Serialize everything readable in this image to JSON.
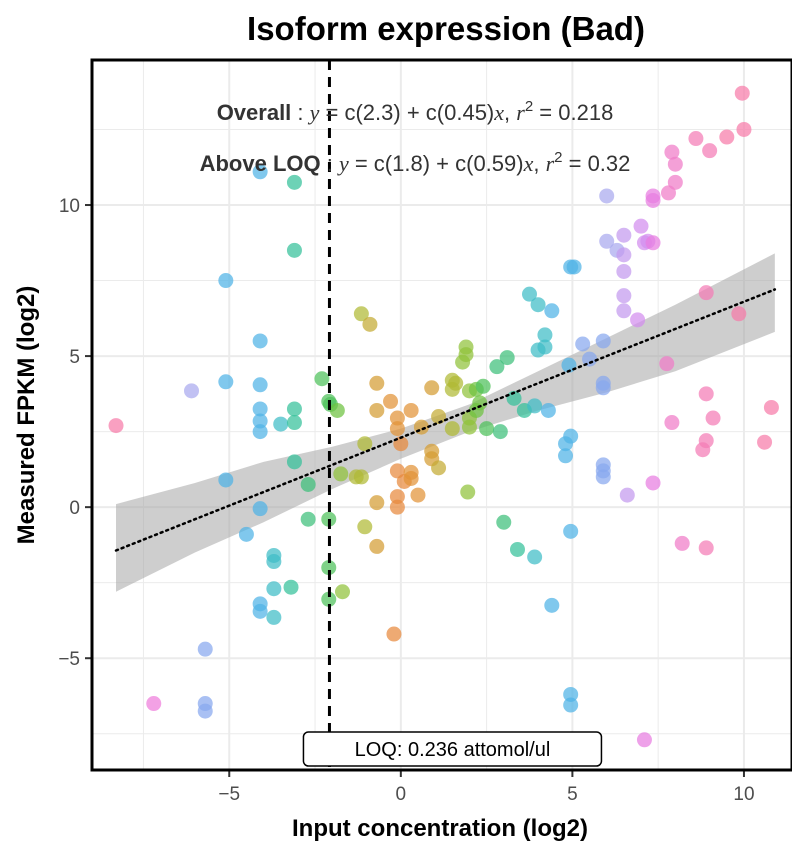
{
  "chart_data": {
    "type": "scatter",
    "title": "Isoform expression (Bad)",
    "xlabel": "Input concentration (log2)",
    "ylabel": "Measured FPKM (log2)",
    "xlim": [
      -9.0,
      11.4
    ],
    "ylim": [
      -8.7,
      14.8
    ],
    "x_ticks": [
      -5,
      0,
      5,
      10
    ],
    "y_ticks": [
      -5,
      0,
      5,
      10
    ],
    "x_tick_labels": [
      "−5",
      "0",
      "5",
      "10"
    ],
    "y_tick_labels": [
      "−5",
      "0",
      "5",
      "10"
    ],
    "grid": true,
    "legend": "none",
    "annotations": {
      "overall": {
        "label": "Overall",
        "sep": " : ",
        "y": "y",
        "eq": " = c(2.3) + c(0.45)",
        "x": "x",
        "comma": ",  ",
        "r": "r",
        "sup": "2",
        "r2": " = 0.218"
      },
      "above_loq": {
        "label": "Above LOQ",
        "sep": " : ",
        "y": "y",
        "eq": " = c(1.8) + c(0.59)",
        "x": "x",
        "comma": ",  ",
        "r": "r",
        "sup": "2",
        "r2": " = 0.32"
      }
    },
    "loq_line": {
      "x": -2.08,
      "label": "LOQ: 0.236 attomol/ul"
    },
    "fit_line": {
      "intercept": 2.3,
      "slope": 0.45,
      "x_range": [
        -8.3,
        10.9
      ]
    },
    "confidence_band": {
      "x": [
        -8.3,
        -6,
        -4,
        -2,
        0,
        2,
        4,
        6,
        8,
        10.9
      ],
      "lower": [
        -2.8,
        -1.5,
        -0.5,
        0.6,
        1.6,
        2.5,
        3.2,
        3.8,
        4.5,
        5.8
      ],
      "upper": [
        0.1,
        0.8,
        1.5,
        2.0,
        2.6,
        3.4,
        4.5,
        5.6,
        6.7,
        8.4
      ]
    },
    "points": [
      {
        "x": -8.3,
        "y": 2.7,
        "color": "#f77ba9"
      },
      {
        "x": -7.2,
        "y": -6.5,
        "color": "#ee7ddb"
      },
      {
        "x": -6.1,
        "y": 3.85,
        "color": "#a9a9ef"
      },
      {
        "x": -5.7,
        "y": -4.7,
        "color": "#88a8ef"
      },
      {
        "x": -5.7,
        "y": -6.5,
        "color": "#88a8ef"
      },
      {
        "x": -5.7,
        "y": -6.75,
        "color": "#88a8ef"
      },
      {
        "x": -5.1,
        "y": 7.5,
        "color": "#4fb3e6"
      },
      {
        "x": -5.1,
        "y": 4.15,
        "color": "#4fb3e6"
      },
      {
        "x": -5.1,
        "y": 0.9,
        "color": "#4fb3e6"
      },
      {
        "x": -4.5,
        "y": -0.9,
        "color": "#4fb3e6"
      },
      {
        "x": -4.1,
        "y": 11.1,
        "color": "#4fb3e6"
      },
      {
        "x": -4.1,
        "y": 5.5,
        "color": "#4fb3e6"
      },
      {
        "x": -4.1,
        "y": 4.05,
        "color": "#4fb3e6"
      },
      {
        "x": -4.1,
        "y": 3.25,
        "color": "#4fb3e6"
      },
      {
        "x": -4.1,
        "y": 2.85,
        "color": "#4fb3e6"
      },
      {
        "x": -4.1,
        "y": 2.5,
        "color": "#4fb3e6"
      },
      {
        "x": -4.1,
        "y": -0.05,
        "color": "#4fb3e6"
      },
      {
        "x": -4.1,
        "y": -3.2,
        "color": "#4fb3e6"
      },
      {
        "x": -4.1,
        "y": -3.45,
        "color": "#4fb3e6"
      },
      {
        "x": -3.7,
        "y": -1.6,
        "color": "#3fbcc6"
      },
      {
        "x": -3.7,
        "y": -1.8,
        "color": "#3fbcc6"
      },
      {
        "x": -3.7,
        "y": -2.7,
        "color": "#3fbcc6"
      },
      {
        "x": -3.7,
        "y": -3.65,
        "color": "#3fbcc6"
      },
      {
        "x": -3.5,
        "y": 2.75,
        "color": "#3fbcc6"
      },
      {
        "x": -3.1,
        "y": 10.75,
        "color": "#34c09a"
      },
      {
        "x": -3.1,
        "y": 8.5,
        "color": "#34c09a"
      },
      {
        "x": -3.1,
        "y": 3.25,
        "color": "#34c09a"
      },
      {
        "x": -3.1,
        "y": 2.8,
        "color": "#34c09a"
      },
      {
        "x": -3.1,
        "y": 1.5,
        "color": "#34c09a"
      },
      {
        "x": -3.2,
        "y": -2.65,
        "color": "#34c09a"
      },
      {
        "x": -2.7,
        "y": 0.75,
        "color": "#3dbf7a"
      },
      {
        "x": -2.7,
        "y": -0.4,
        "color": "#3dbf7a"
      },
      {
        "x": -2.3,
        "y": 4.25,
        "color": "#4ec05a"
      },
      {
        "x": -2.1,
        "y": 3.5,
        "color": "#4ec05a"
      },
      {
        "x": -2.05,
        "y": 3.4,
        "color": "#4ec05a"
      },
      {
        "x": -2.1,
        "y": -0.4,
        "color": "#4ec05a"
      },
      {
        "x": -2.1,
        "y": -2.0,
        "color": "#4ec05a"
      },
      {
        "x": -2.1,
        "y": -3.05,
        "color": "#4ec05a"
      },
      {
        "x": -1.85,
        "y": 3.2,
        "color": "#6ec240"
      },
      {
        "x": -1.75,
        "y": 1.1,
        "color": "#90c23a"
      },
      {
        "x": -1.7,
        "y": -2.8,
        "color": "#90c23a"
      },
      {
        "x": -1.3,
        "y": 1.0,
        "color": "#b0ba35"
      },
      {
        "x": -1.15,
        "y": 6.4,
        "color": "#b0ba35"
      },
      {
        "x": -1.15,
        "y": 1.0,
        "color": "#b0ba35"
      },
      {
        "x": -1.05,
        "y": 2.1,
        "color": "#b0ba35"
      },
      {
        "x": -1.05,
        "y": -0.65,
        "color": "#b0ba35"
      },
      {
        "x": -0.9,
        "y": 6.05,
        "color": "#c4aa33"
      },
      {
        "x": -0.7,
        "y": 4.1,
        "color": "#d49d33"
      },
      {
        "x": -0.7,
        "y": 3.2,
        "color": "#d49d33"
      },
      {
        "x": -0.7,
        "y": 0.15,
        "color": "#d49d33"
      },
      {
        "x": -0.7,
        "y": -1.3,
        "color": "#d49d33"
      },
      {
        "x": -0.3,
        "y": 3.5,
        "color": "#e29338"
      },
      {
        "x": -0.1,
        "y": 2.95,
        "color": "#e29338"
      },
      {
        "x": -0.1,
        "y": 2.6,
        "color": "#e29338"
      },
      {
        "x": -0.1,
        "y": 1.2,
        "color": "#e8893d"
      },
      {
        "x": -0.1,
        "y": 0.35,
        "color": "#e8893d"
      },
      {
        "x": -0.1,
        "y": 0.0,
        "color": "#e8893d"
      },
      {
        "x": -0.2,
        "y": -4.2,
        "color": "#e8893d"
      },
      {
        "x": 0.0,
        "y": 2.1,
        "color": "#e8893d"
      },
      {
        "x": 0.1,
        "y": 0.85,
        "color": "#e8893d"
      },
      {
        "x": 0.3,
        "y": 3.2,
        "color": "#e29338"
      },
      {
        "x": 0.3,
        "y": 1.15,
        "color": "#e29338"
      },
      {
        "x": 0.3,
        "y": 0.95,
        "color": "#e29338"
      },
      {
        "x": 0.5,
        "y": 0.4,
        "color": "#e29338"
      },
      {
        "x": 0.6,
        "y": 2.65,
        "color": "#d49d33"
      },
      {
        "x": 0.9,
        "y": 3.95,
        "color": "#d49d33"
      },
      {
        "x": 0.9,
        "y": 1.85,
        "color": "#d49d33"
      },
      {
        "x": 0.9,
        "y": 1.6,
        "color": "#d49d33"
      },
      {
        "x": 1.1,
        "y": 3.0,
        "color": "#c4aa33"
      },
      {
        "x": 1.1,
        "y": 1.3,
        "color": "#c4aa33"
      },
      {
        "x": 1.5,
        "y": 3.9,
        "color": "#b0ba35"
      },
      {
        "x": 1.5,
        "y": 4.2,
        "color": "#b0ba35"
      },
      {
        "x": 1.5,
        "y": 2.6,
        "color": "#b0ba35"
      },
      {
        "x": 1.6,
        "y": 4.1,
        "color": "#b0ba35"
      },
      {
        "x": 1.8,
        "y": 4.8,
        "color": "#90c23a"
      },
      {
        "x": 1.9,
        "y": 5.05,
        "color": "#90c23a"
      },
      {
        "x": 1.9,
        "y": 5.3,
        "color": "#90c23a"
      },
      {
        "x": 2.0,
        "y": 3.85,
        "color": "#90c23a"
      },
      {
        "x": 2.0,
        "y": 2.95,
        "color": "#90c23a"
      },
      {
        "x": 2.0,
        "y": 2.65,
        "color": "#90c23a"
      },
      {
        "x": 1.95,
        "y": 0.5,
        "color": "#90c23a"
      },
      {
        "x": 2.2,
        "y": 3.9,
        "color": "#6ec240"
      },
      {
        "x": 2.2,
        "y": 3.2,
        "color": "#6ec240"
      },
      {
        "x": 2.3,
        "y": 3.45,
        "color": "#6ec240"
      },
      {
        "x": 2.4,
        "y": 4.0,
        "color": "#4ec05a"
      },
      {
        "x": 2.5,
        "y": 2.6,
        "color": "#4ec05a"
      },
      {
        "x": 2.8,
        "y": 4.65,
        "color": "#3dbf7a"
      },
      {
        "x": 2.9,
        "y": 2.5,
        "color": "#3dbf7a"
      },
      {
        "x": 3.0,
        "y": -0.5,
        "color": "#3dbf7a"
      },
      {
        "x": 3.1,
        "y": 4.95,
        "color": "#3dbf7a"
      },
      {
        "x": 3.3,
        "y": 3.6,
        "color": "#34c09a"
      },
      {
        "x": 3.4,
        "y": -1.4,
        "color": "#34c09a"
      },
      {
        "x": 3.6,
        "y": 3.2,
        "color": "#34c09a"
      },
      {
        "x": 3.75,
        "y": 7.05,
        "color": "#3fbcc6"
      },
      {
        "x": 3.9,
        "y": 3.35,
        "color": "#3fbcc6"
      },
      {
        "x": 3.9,
        "y": -1.65,
        "color": "#3fbcc6"
      },
      {
        "x": 4.0,
        "y": 6.7,
        "color": "#3fbcc6"
      },
      {
        "x": 4.0,
        "y": 5.2,
        "color": "#3fbcc6"
      },
      {
        "x": 4.2,
        "y": 5.7,
        "color": "#3fbcc6"
      },
      {
        "x": 4.2,
        "y": 5.3,
        "color": "#3fbcc6"
      },
      {
        "x": 4.3,
        "y": 3.2,
        "color": "#4fb3e6"
      },
      {
        "x": 4.4,
        "y": 6.5,
        "color": "#4fb3e6"
      },
      {
        "x": 4.4,
        "y": -3.25,
        "color": "#4fb3e6"
      },
      {
        "x": 4.8,
        "y": 2.1,
        "color": "#4fb3e6"
      },
      {
        "x": 4.8,
        "y": 1.7,
        "color": "#4fb3e6"
      },
      {
        "x": 4.9,
        "y": 4.7,
        "color": "#4fb3e6"
      },
      {
        "x": 4.95,
        "y": 7.95,
        "color": "#4fb3e6"
      },
      {
        "x": 5.05,
        "y": 7.95,
        "color": "#4fb3e6"
      },
      {
        "x": 4.95,
        "y": 2.35,
        "color": "#4fb3e6"
      },
      {
        "x": 4.95,
        "y": -0.8,
        "color": "#4fb3e6"
      },
      {
        "x": 4.95,
        "y": -6.2,
        "color": "#4fb3e6"
      },
      {
        "x": 4.95,
        "y": -6.55,
        "color": "#4fb3e6"
      },
      {
        "x": 5.3,
        "y": 5.4,
        "color": "#88a8ef"
      },
      {
        "x": 5.5,
        "y": 4.9,
        "color": "#88a8ef"
      },
      {
        "x": 5.9,
        "y": 5.5,
        "color": "#88a8ef"
      },
      {
        "x": 5.9,
        "y": 4.1,
        "color": "#88a8ef"
      },
      {
        "x": 5.9,
        "y": 3.95,
        "color": "#88a8ef"
      },
      {
        "x": 5.9,
        "y": 1.4,
        "color": "#88a8ef"
      },
      {
        "x": 5.9,
        "y": 1.2,
        "color": "#88a8ef"
      },
      {
        "x": 5.9,
        "y": 1.0,
        "color": "#88a8ef"
      },
      {
        "x": 6.0,
        "y": 10.3,
        "color": "#a9a9ef"
      },
      {
        "x": 6.0,
        "y": 8.8,
        "color": "#a9a9ef"
      },
      {
        "x": 6.3,
        "y": 8.5,
        "color": "#a9a9ef"
      },
      {
        "x": 6.5,
        "y": 9.0,
        "color": "#c39aef"
      },
      {
        "x": 6.5,
        "y": 8.35,
        "color": "#c39aef"
      },
      {
        "x": 6.5,
        "y": 7.8,
        "color": "#c39aef"
      },
      {
        "x": 6.5,
        "y": 7.0,
        "color": "#c39aef"
      },
      {
        "x": 6.5,
        "y": 6.5,
        "color": "#c39aef"
      },
      {
        "x": 6.6,
        "y": 0.4,
        "color": "#c39aef"
      },
      {
        "x": 6.9,
        "y": 6.2,
        "color": "#d38eef"
      },
      {
        "x": 7.0,
        "y": 9.3,
        "color": "#d38eef"
      },
      {
        "x": 7.1,
        "y": 8.75,
        "color": "#d38eef"
      },
      {
        "x": 7.2,
        "y": 8.8,
        "color": "#d38eef"
      },
      {
        "x": 7.1,
        "y": -7.7,
        "color": "#e87de0"
      },
      {
        "x": 7.35,
        "y": 10.3,
        "color": "#e87de0"
      },
      {
        "x": 7.35,
        "y": 10.15,
        "color": "#e87de0"
      },
      {
        "x": 7.35,
        "y": 8.75,
        "color": "#e87de0"
      },
      {
        "x": 7.35,
        "y": 0.8,
        "color": "#e87de0"
      },
      {
        "x": 7.75,
        "y": 4.75,
        "color": "#f07cc8"
      },
      {
        "x": 7.8,
        "y": 10.4,
        "color": "#f07cc8"
      },
      {
        "x": 7.9,
        "y": 11.75,
        "color": "#f07cc8"
      },
      {
        "x": 7.9,
        "y": 2.8,
        "color": "#f07cc8"
      },
      {
        "x": 8.0,
        "y": 10.75,
        "color": "#f07cc8"
      },
      {
        "x": 8.0,
        "y": 11.35,
        "color": "#f07cc8"
      },
      {
        "x": 8.2,
        "y": -1.2,
        "color": "#f07cc8"
      },
      {
        "x": 8.6,
        "y": 12.2,
        "color": "#f47bb6"
      },
      {
        "x": 8.8,
        "y": 1.9,
        "color": "#f47bb6"
      },
      {
        "x": 8.9,
        "y": 7.1,
        "color": "#f47bb6"
      },
      {
        "x": 8.9,
        "y": 3.75,
        "color": "#f47bb6"
      },
      {
        "x": 8.9,
        "y": 2.2,
        "color": "#f47bb6"
      },
      {
        "x": 8.9,
        "y": -1.35,
        "color": "#f47bb6"
      },
      {
        "x": 9.0,
        "y": 11.8,
        "color": "#f47bb6"
      },
      {
        "x": 9.1,
        "y": 2.95,
        "color": "#f47bb6"
      },
      {
        "x": 9.5,
        "y": 12.25,
        "color": "#f77ba9"
      },
      {
        "x": 9.85,
        "y": 6.4,
        "color": "#f77ba9"
      },
      {
        "x": 9.95,
        "y": 13.7,
        "color": "#f77ba9"
      },
      {
        "x": 10.0,
        "y": 12.5,
        "color": "#f77ba9"
      },
      {
        "x": 10.6,
        "y": 2.15,
        "color": "#f77ba9"
      },
      {
        "x": 10.8,
        "y": 3.3,
        "color": "#f77ba9"
      }
    ]
  },
  "colors": {
    "fit_line": "#000000",
    "band": "#a6a6a6",
    "grid": "#ebebeb",
    "panel_border": "#000000",
    "loq_line": "#000000"
  }
}
